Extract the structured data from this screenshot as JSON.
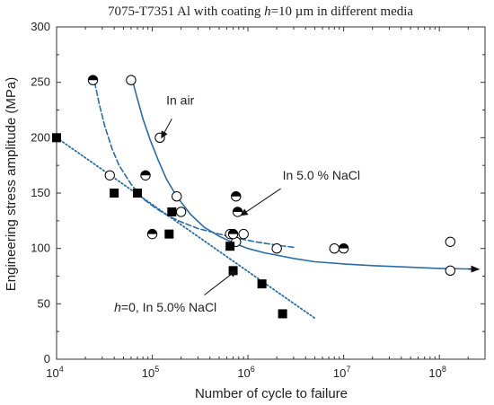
{
  "chart_data": {
    "type": "scatter",
    "title_prefix": "7075-T7351 Al with coating ",
    "title_var": "h",
    "title_suffix": "=10 µm in different media",
    "xlabel": "Number of cycle to failure",
    "ylabel": "Engineering stress amplitude (MPa)",
    "xscale": "log",
    "xlim": [
      10000,
      300000000
    ],
    "ylim": [
      0,
      300
    ],
    "x_ticks": [
      {
        "value": 10000,
        "base": "10",
        "exp": "4"
      },
      {
        "value": 100000,
        "base": "10",
        "exp": "5"
      },
      {
        "value": 1000000,
        "base": "10",
        "exp": "6"
      },
      {
        "value": 10000000,
        "base": "10",
        "exp": "7"
      },
      {
        "value": 100000000,
        "base": "10",
        "exp": "8"
      }
    ],
    "y_ticks": [
      "0",
      "50",
      "100",
      "150",
      "200",
      "250",
      "300"
    ],
    "grid": false,
    "colors": {
      "fit_line": "#2b6ca3",
      "marker": "#000000",
      "axis": "#333333"
    },
    "series": [
      {
        "marker": "open-circle",
        "points": [
          {
            "x": 60000,
            "y": 252
          },
          {
            "x": 120000,
            "y": 200
          },
          {
            "x": 36000,
            "y": 166
          },
          {
            "x": 180000,
            "y": 147
          },
          {
            "x": 200000,
            "y": 133
          },
          {
            "x": 650000,
            "y": 113
          },
          {
            "x": 900000,
            "y": 113
          },
          {
            "x": 750000,
            "y": 106
          },
          {
            "x": 2000000,
            "y": 100
          },
          {
            "x": 8000000,
            "y": 100
          },
          {
            "x": 130000000,
            "y": 106
          },
          {
            "x": 130000000,
            "y": 80
          }
        ]
      },
      {
        "marker": "half-filled-circle",
        "points": [
          {
            "x": 24000,
            "y": 252
          },
          {
            "x": 85000,
            "y": 166
          },
          {
            "x": 750000,
            "y": 147
          },
          {
            "x": 780000,
            "y": 133
          },
          {
            "x": 100000,
            "y": 113
          },
          {
            "x": 700000,
            "y": 113
          },
          {
            "x": 10000000,
            "y": 100
          }
        ]
      },
      {
        "marker": "filled-square",
        "points": [
          {
            "x": 10000,
            "y": 200
          },
          {
            "x": 40000,
            "y": 150
          },
          {
            "x": 70000,
            "y": 150
          },
          {
            "x": 160000,
            "y": 133
          },
          {
            "x": 150000,
            "y": 113
          },
          {
            "x": 650000,
            "y": 102
          },
          {
            "x": 700000,
            "y": 80
          },
          {
            "x": 1400000,
            "y": 68
          },
          {
            "x": 2300000,
            "y": 41
          }
        ]
      }
    ],
    "fits": [
      {
        "style": "solid",
        "points": [
          [
            62000,
            252
          ],
          [
            70000,
            235
          ],
          [
            80000,
            217
          ],
          [
            95000,
            198
          ],
          [
            115000,
            180
          ],
          [
            140000,
            163
          ],
          [
            180000,
            147
          ],
          [
            250000,
            131
          ],
          [
            350000,
            119
          ],
          [
            500000,
            111
          ],
          [
            750000,
            104
          ],
          [
            1000000,
            100
          ],
          [
            1500000,
            96
          ],
          [
            2000000,
            94
          ],
          [
            3000000,
            91
          ],
          [
            5000000,
            88
          ],
          [
            10000000,
            86
          ],
          [
            20000000,
            84.5
          ],
          [
            50000000,
            83
          ],
          [
            100000000,
            82
          ],
          [
            200000000,
            81.5
          ],
          [
            250000000,
            81.2
          ]
        ]
      },
      {
        "style": "dashed",
        "points": [
          [
            25000,
            250
          ],
          [
            28000,
            230
          ],
          [
            32000,
            210
          ],
          [
            38000,
            190
          ],
          [
            45000,
            175
          ],
          [
            60000,
            158
          ],
          [
            80000,
            145
          ],
          [
            110000,
            136
          ],
          [
            150000,
            129
          ],
          [
            200000,
            124
          ],
          [
            300000,
            118
          ],
          [
            500000,
            113
          ],
          [
            800000,
            109
          ],
          [
            1200000,
            106
          ],
          [
            2000000,
            103
          ],
          [
            3000000,
            101
          ]
        ]
      },
      {
        "style": "dotted",
        "points": [
          [
            10000,
            200
          ],
          [
            5000000,
            37
          ]
        ]
      }
    ],
    "annotations": [
      {
        "text": "In air",
        "text_x": 140000,
        "text_y": 230,
        "arrow_from": [
          160000,
          217
        ],
        "arrow_to": [
          125000,
          200
        ]
      },
      {
        "text": "In 5.0 % NaCl",
        "text_x": 2300000,
        "text_y": 162,
        "arrow_from": [
          2200000,
          154
        ],
        "arrow_to": [
          850000,
          130
        ]
      },
      {
        "text_var": "h",
        "text": "=0, In 5.0% NaCl",
        "text_x": 40000,
        "text_y": 43,
        "arrow_from": [
          350000,
          58
        ],
        "arrow_to": [
          750000,
          80
        ]
      }
    ],
    "end_arrow": {
      "from": [
        200000000,
        81.5
      ],
      "to": [
        260000000,
        81.2
      ]
    }
  }
}
